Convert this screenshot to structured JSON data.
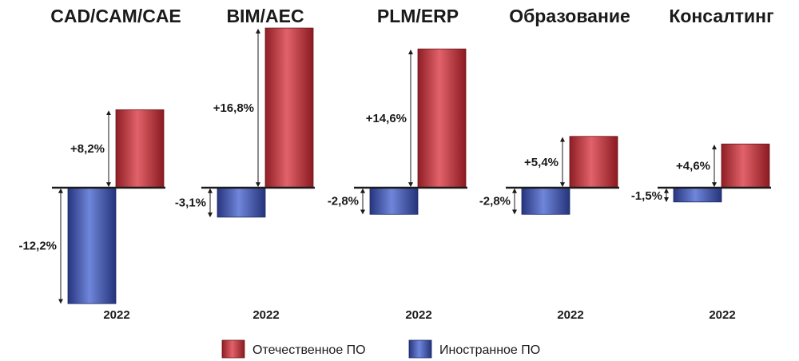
{
  "chart_data": {
    "type": "bar",
    "unit": "%",
    "legend": [
      {
        "name": "Отечественное ПО",
        "color": "#c8323a"
      },
      {
        "name": "Иностранное ПО",
        "color": "#3a4faa"
      }
    ],
    "groups": [
      {
        "title": "CAD/CAM/CAE",
        "year": "2022",
        "domestic": 8.2,
        "foreign": -12.2,
        "domestic_label": "+8,2%",
        "foreign_label": "-12,2%"
      },
      {
        "title": "BIM/AEC",
        "year": "2022",
        "domestic": 16.8,
        "foreign": -3.1,
        "domestic_label": "+16,8%",
        "foreign_label": "-3,1%"
      },
      {
        "title": "PLM/ERP",
        "year": "2022",
        "domestic": 14.6,
        "foreign": -2.8,
        "domestic_label": "+14,6%",
        "foreign_label": "-2,8%"
      },
      {
        "title": "Образование",
        "year": "2022",
        "domestic": 5.4,
        "foreign": -2.8,
        "domestic_label": "+5,4%",
        "foreign_label": "-2,8%"
      },
      {
        "title": "Консалтинг",
        "year": "2022",
        "domestic": 4.6,
        "foreign": -1.5,
        "domestic_label": "+4,6%",
        "foreign_label": "-1,5%"
      }
    ]
  }
}
